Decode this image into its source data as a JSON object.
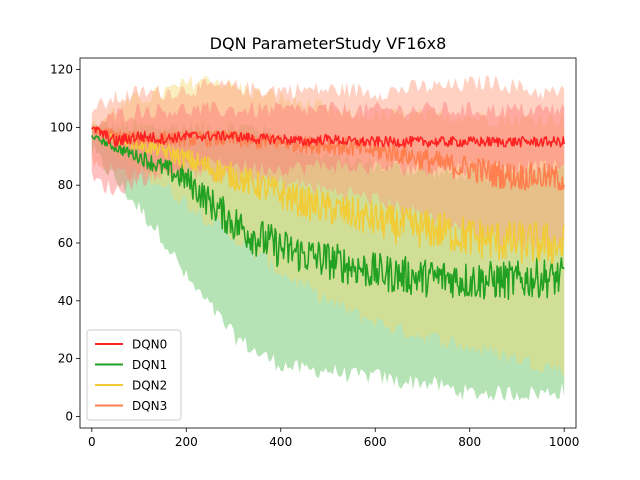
{
  "chart_data": {
    "type": "line",
    "title": "DQN ParameterStudy VF16x8",
    "xlabel": "",
    "ylabel": "",
    "xlim": [
      -25,
      1025
    ],
    "ylim": [
      -4,
      124
    ],
    "xticks": [
      0,
      200,
      400,
      600,
      800,
      1000
    ],
    "yticks": [
      0,
      20,
      40,
      60,
      80,
      100,
      120
    ],
    "legend": {
      "position": "lower-left",
      "entries": [
        "DQN0",
        "DQN1",
        "DQN2",
        "DQN3"
      ]
    },
    "grid": false,
    "series": [
      {
        "name": "DQN0",
        "color": "#ff2222",
        "band_color": "#ff7777",
        "x": [
          0,
          50,
          100,
          150,
          200,
          250,
          300,
          350,
          400,
          450,
          500,
          550,
          600,
          650,
          700,
          750,
          800,
          850,
          900,
          950,
          1000
        ],
        "mean": [
          100,
          95,
          97,
          96,
          97,
          97,
          97,
          96,
          96,
          95,
          96,
          95,
          95,
          95,
          95,
          95,
          95,
          95,
          95,
          95,
          95
        ],
        "lower": [
          82,
          78,
          82,
          85,
          86,
          87,
          87,
          86,
          86,
          86,
          87,
          86,
          86,
          86,
          86,
          86,
          86,
          86,
          86,
          86,
          86
        ],
        "upper": [
          100,
          104,
          106,
          106,
          106,
          106,
          106,
          106,
          106,
          106,
          106,
          106,
          106,
          106,
          106,
          106,
          106,
          106,
          106,
          106,
          106
        ]
      },
      {
        "name": "DQN1",
        "color": "#22a022",
        "band_color": "#5cc05c",
        "x": [
          0,
          50,
          100,
          150,
          200,
          250,
          300,
          350,
          400,
          450,
          500,
          550,
          600,
          650,
          700,
          750,
          800,
          850,
          900,
          950,
          1000
        ],
        "mean": [
          97,
          93,
          90,
          86,
          82,
          74,
          67,
          62,
          58,
          56,
          54,
          52,
          50,
          49,
          48,
          48,
          47,
          47,
          47,
          48,
          48
        ],
        "lower": [
          92,
          82,
          72,
          62,
          48,
          38,
          28,
          22,
          18,
          16,
          16,
          14,
          14,
          12,
          12,
          10,
          8,
          8,
          8,
          8,
          9
        ],
        "upper": [
          100,
          100,
          100,
          100,
          100,
          100,
          100,
          100,
          96,
          92,
          90,
          88,
          87,
          86,
          85,
          84,
          84,
          84,
          84,
          85,
          86
        ]
      },
      {
        "name": "DQN2",
        "color": "#f2cc38",
        "band_color": "#f5da70",
        "x": [
          0,
          50,
          100,
          150,
          200,
          250,
          300,
          350,
          400,
          450,
          500,
          550,
          600,
          650,
          700,
          750,
          800,
          850,
          900,
          950,
          1000
        ],
        "mean": [
          100,
          96,
          94,
          92,
          89,
          86,
          83,
          80,
          77,
          74,
          72,
          70,
          68,
          66,
          65,
          64,
          62,
          61,
          60,
          60,
          59
        ],
        "lower": [
          96,
          90,
          85,
          80,
          74,
          68,
          62,
          56,
          50,
          45,
          40,
          36,
          33,
          30,
          28,
          26,
          24,
          22,
          20,
          18,
          16
        ],
        "upper": [
          100,
          106,
          110,
          112,
          115,
          117,
          114,
          112,
          110,
          108,
          106,
          104,
          104,
          104,
          104,
          104,
          104,
          103,
          103,
          103,
          103
        ]
      },
      {
        "name": "DQN3",
        "color": "#ff7f4f",
        "band_color": "#ff9a7a",
        "x": [
          0,
          50,
          100,
          150,
          200,
          250,
          300,
          350,
          400,
          450,
          500,
          550,
          600,
          650,
          700,
          750,
          800,
          850,
          900,
          950,
          1000
        ],
        "mean": [
          100,
          97,
          96,
          96,
          96,
          96,
          96,
          95,
          95,
          94,
          94,
          93,
          92,
          91,
          89,
          87,
          86,
          84,
          83,
          83,
          82
        ],
        "lower": [
          88,
          85,
          84,
          84,
          84,
          84,
          82,
          82,
          81,
          80,
          78,
          77,
          75,
          72,
          70,
          67,
          64,
          62,
          60,
          60,
          60
        ],
        "upper": [
          106,
          110,
          112,
          112,
          113,
          114,
          114,
          113,
          113,
          113,
          113,
          113,
          112,
          113,
          114,
          114,
          115,
          116,
          114,
          112,
          112
        ]
      }
    ]
  }
}
